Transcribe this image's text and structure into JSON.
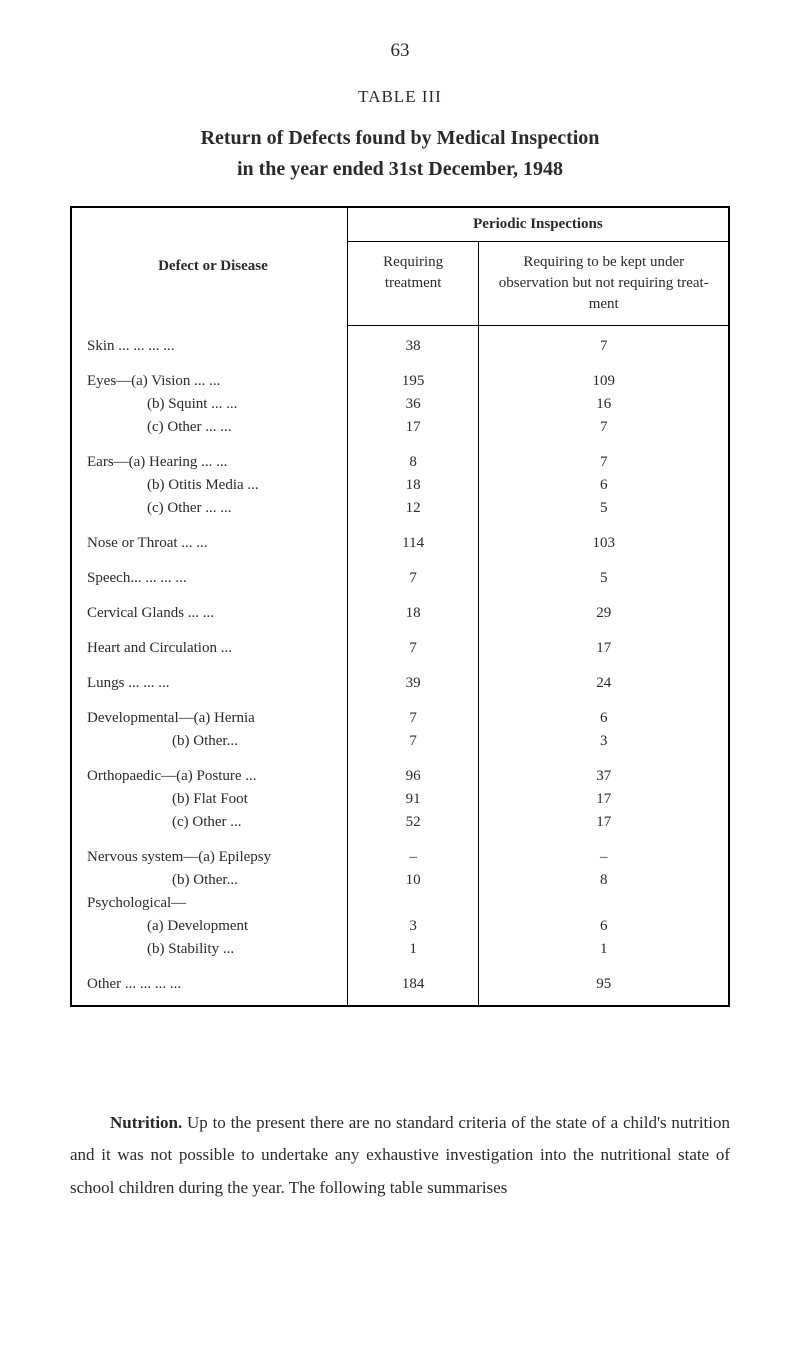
{
  "page_number": "63",
  "table_number": "TABLE III",
  "title_line1": "Return of Defects found by Medical Inspection",
  "title_line2": "in the year ended 31st December, 1948",
  "headers": {
    "periodic": "Periodic Inspections",
    "defect": "Defect or Disease",
    "requiring": "Requiring treatment",
    "observation": "Requiring to be kept under observation but not requiring treat­ment"
  },
  "rows": [
    {
      "label": "Skin   ...      ...      ...      ...",
      "req": "38",
      "obs": "7",
      "space_after": true
    },
    {
      "label": "Eyes—(a) Vision      ...      ...",
      "req": "195",
      "obs": "109"
    },
    {
      "label": "(b) Squint     ...      ...",
      "req": "36",
      "obs": "16",
      "indent": 1
    },
    {
      "label": "(c)  Other      ...      ...",
      "req": "17",
      "obs": "7",
      "indent": 1,
      "space_after": true
    },
    {
      "label": "Ears—(a) Hearing    ...      ...",
      "req": "8",
      "obs": "7"
    },
    {
      "label": "(b) Otitis Media         ...",
      "req": "18",
      "obs": "6",
      "indent": 1
    },
    {
      "label": "(c) Other       ...      ...",
      "req": "12",
      "obs": "5",
      "indent": 1,
      "space_after": true
    },
    {
      "label": "Nose or Throat         ...      ...",
      "req": "114",
      "obs": "103",
      "space_after": true
    },
    {
      "label": "Speech...      ...      ...      ...",
      "req": "7",
      "obs": "5",
      "space_after": true
    },
    {
      "label": "Cervical Glands        ...      ...",
      "req": "18",
      "obs": "29",
      "space_after": true
    },
    {
      "label": "Heart and Circulation        ...",
      "req": "7",
      "obs": "17",
      "space_after": true
    },
    {
      "label": "Lungs          ...      ...      ...",
      "req": "39",
      "obs": "24",
      "space_after": true
    },
    {
      "label": "Developmental—(a)  Hernia",
      "req": "7",
      "obs": "6"
    },
    {
      "label": "(b)  Other...",
      "req": "7",
      "obs": "3",
      "indent": 2,
      "space_after": true
    },
    {
      "label": "Orthopaedic—(a) Posture  ...",
      "req": "96",
      "obs": "37"
    },
    {
      "label": "(b) Flat Foot",
      "req": "91",
      "obs": "17",
      "indent": 2
    },
    {
      "label": "(c) Other      ...",
      "req": "52",
      "obs": "17",
      "indent": 2,
      "space_after": true
    },
    {
      "label": "Nervous system—(a) Epilepsy",
      "req": "–",
      "obs": "–"
    },
    {
      "label": "(b) Other...",
      "req": "10",
      "obs": "8",
      "indent": 2
    },
    {
      "label": "Psychological—",
      "req": "",
      "obs": ""
    },
    {
      "label": "(a) Development",
      "req": "3",
      "obs": "6",
      "indent": 1
    },
    {
      "label": "(b) Stability      ...",
      "req": "1",
      "obs": "1",
      "indent": 1,
      "space_after": true
    },
    {
      "label": "Other ...      ...      ...      ...",
      "req": "184",
      "obs": "95"
    }
  ],
  "body_text": {
    "bold_lead": "Nutrition.",
    "rest": " Up to the present there are no standard criteria of the state of a child's nutrition and it was not possible to under­take any exhaustive investigation into the nutritional state of school children during the year. The following table summarises"
  }
}
